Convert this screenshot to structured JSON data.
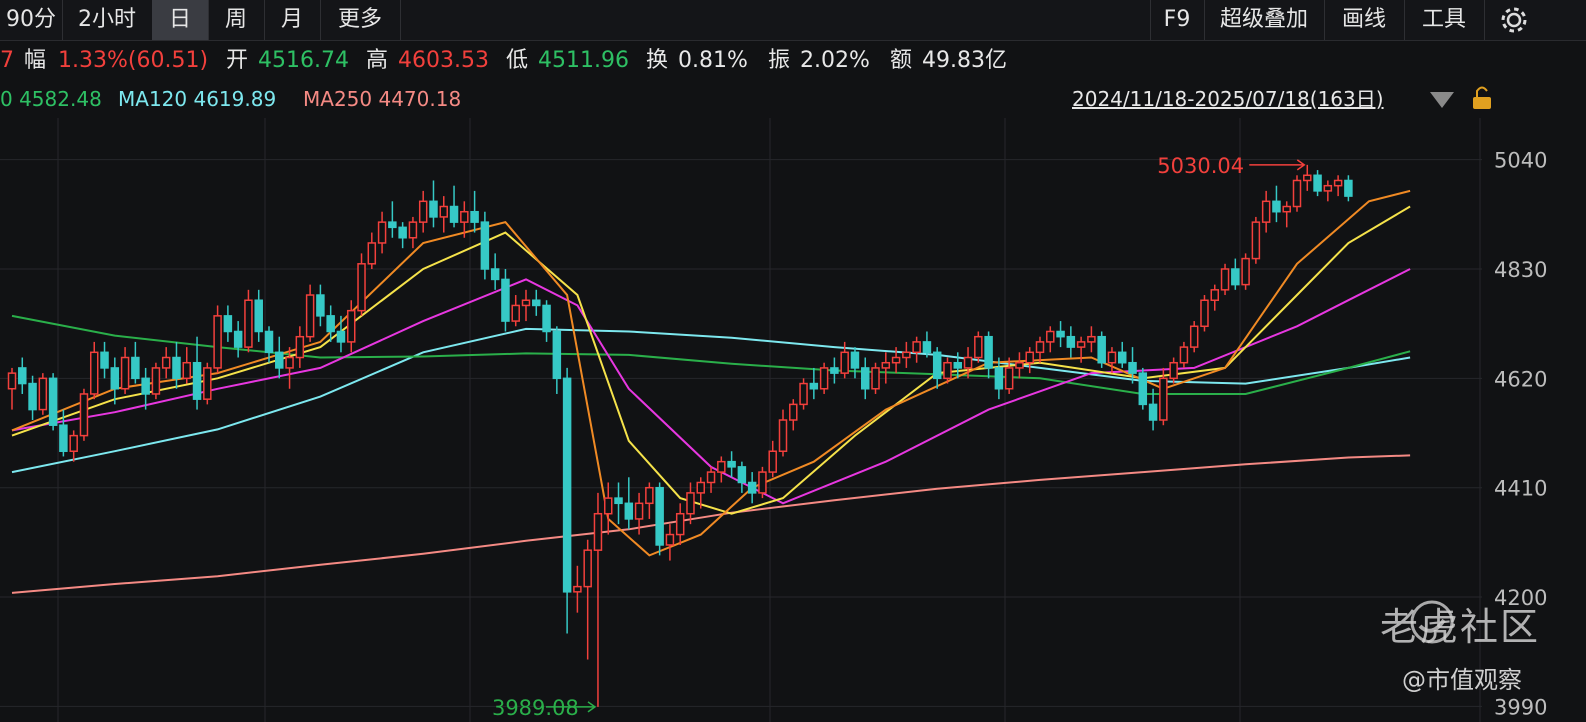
{
  "toolbar": {
    "left_tabs": [
      "90分",
      "2小时",
      "日",
      "周",
      "月",
      "更多"
    ],
    "active_tab": "日",
    "right_tabs": [
      "F9",
      "超级叠加",
      "画线",
      "工具"
    ],
    "settings_icon": "gear-icon"
  },
  "info": {
    "lead_fragment": "7",
    "change_label": "幅",
    "change_value": "1.33%(60.51)",
    "open_label": "开",
    "open_value": "4516.74",
    "high_label": "高",
    "high_value": "4603.53",
    "low_label": "低",
    "low_value": "4511.96",
    "turnover_label": "换",
    "turnover_value": "0.81%",
    "amplitude_label": "振",
    "amplitude_value": "2.02%",
    "amount_label": "额",
    "amount_value": "49.83亿"
  },
  "ma_legend": {
    "ma60_fragment": "0 4582.48",
    "ma120": "MA120 4619.89",
    "ma250": "MA250 4470.18"
  },
  "range_label": "2024/11/18-2025/07/18(163日)",
  "range_icons": [
    "triangle-down-icon",
    "lock-icon"
  ],
  "watermark": {
    "brand": "老虎社区",
    "author": "@市值观察"
  },
  "colors": {
    "up": "#f2403c",
    "down": "#36c9c6",
    "ma5": "#f0f0f0",
    "ma10": "#f5e24a",
    "ma20": "#e737e0",
    "ma30": "#f08a24",
    "ma60": "#2aaf4a",
    "ma120": "#7de8ef",
    "ma250": "#f58a84"
  },
  "chart_data": {
    "type": "candlestick",
    "ylim": [
      3960,
      5120
    ],
    "y_ticks": [
      5040,
      4830,
      4620,
      4410,
      4200,
      3990
    ],
    "max_label": "5030.04",
    "min_label": "3989.08",
    "candles": [
      [
        4600,
        4640,
        4560,
        4630
      ],
      [
        4640,
        4660,
        4590,
        4610
      ],
      [
        4610,
        4625,
        4540,
        4560
      ],
      [
        4560,
        4630,
        4550,
        4620
      ],
      [
        4620,
        4630,
        4520,
        4530
      ],
      [
        4530,
        4560,
        4470,
        4480
      ],
      [
        4480,
        4520,
        4460,
        4510
      ],
      [
        4510,
        4600,
        4500,
        4590
      ],
      [
        4590,
        4690,
        4580,
        4670
      ],
      [
        4670,
        4690,
        4620,
        4640
      ],
      [
        4640,
        4660,
        4570,
        4600
      ],
      [
        4600,
        4680,
        4590,
        4660
      ],
      [
        4660,
        4690,
        4610,
        4620
      ],
      [
        4620,
        4640,
        4560,
        4590
      ],
      [
        4590,
        4650,
        4580,
        4640
      ],
      [
        4640,
        4680,
        4620,
        4660
      ],
      [
        4660,
        4690,
        4600,
        4620
      ],
      [
        4620,
        4680,
        4610,
        4650
      ],
      [
        4650,
        4700,
        4560,
        4580
      ],
      [
        4580,
        4650,
        4570,
        4640
      ],
      [
        4640,
        4760,
        4630,
        4740
      ],
      [
        4740,
        4760,
        4690,
        4710
      ],
      [
        4710,
        4730,
        4660,
        4680
      ],
      [
        4680,
        4790,
        4670,
        4770
      ],
      [
        4770,
        4790,
        4690,
        4710
      ],
      [
        4710,
        4720,
        4650,
        4670
      ],
      [
        4670,
        4700,
        4620,
        4640
      ],
      [
        4640,
        4680,
        4600,
        4660
      ],
      [
        4660,
        4720,
        4640,
        4700
      ],
      [
        4700,
        4800,
        4690,
        4780
      ],
      [
        4780,
        4800,
        4720,
        4740
      ],
      [
        4740,
        4760,
        4690,
        4710
      ],
      [
        4710,
        4740,
        4670,
        4690
      ],
      [
        4690,
        4770,
        4670,
        4750
      ],
      [
        4750,
        4860,
        4740,
        4840
      ],
      [
        4840,
        4900,
        4830,
        4880
      ],
      [
        4880,
        4940,
        4860,
        4920
      ],
      [
        4920,
        4960,
        4890,
        4910
      ],
      [
        4910,
        4920,
        4870,
        4890
      ],
      [
        4890,
        4930,
        4870,
        4920
      ],
      [
        4920,
        4980,
        4900,
        4960
      ],
      [
        4960,
        5000,
        4910,
        4930
      ],
      [
        4930,
        4970,
        4900,
        4950
      ],
      [
        4950,
        4990,
        4910,
        4920
      ],
      [
        4920,
        4960,
        4890,
        4940
      ],
      [
        4940,
        4980,
        4900,
        4920
      ],
      [
        4920,
        4940,
        4810,
        4830
      ],
      [
        4830,
        4860,
        4790,
        4810
      ],
      [
        4810,
        4830,
        4710,
        4730
      ],
      [
        4730,
        4780,
        4720,
        4760
      ],
      [
        4760,
        4790,
        4730,
        4770
      ],
      [
        4770,
        4790,
        4740,
        4760
      ],
      [
        4760,
        4770,
        4690,
        4710
      ],
      [
        4710,
        4720,
        4590,
        4620
      ],
      [
        4620,
        4640,
        4130,
        4210
      ],
      [
        4210,
        4260,
        4170,
        4220
      ],
      [
        4220,
        4310,
        4080,
        4290
      ],
      [
        4290,
        4400,
        3989,
        4360
      ],
      [
        4360,
        4420,
        4320,
        4390
      ],
      [
        4390,
        4420,
        4340,
        4380
      ],
      [
        4380,
        4430,
        4330,
        4350
      ],
      [
        4350,
        4400,
        4320,
        4380
      ],
      [
        4380,
        4420,
        4350,
        4410
      ],
      [
        4410,
        4420,
        4280,
        4300
      ],
      [
        4300,
        4340,
        4270,
        4320
      ],
      [
        4320,
        4380,
        4300,
        4360
      ],
      [
        4360,
        4420,
        4340,
        4400
      ],
      [
        4400,
        4430,
        4370,
        4420
      ],
      [
        4420,
        4450,
        4400,
        4440
      ],
      [
        4440,
        4470,
        4420,
        4460
      ],
      [
        4460,
        4480,
        4430,
        4450
      ],
      [
        4450,
        4460,
        4400,
        4420
      ],
      [
        4420,
        4440,
        4380,
        4400
      ],
      [
        4400,
        4450,
        4390,
        4440
      ],
      [
        4440,
        4500,
        4430,
        4480
      ],
      [
        4480,
        4560,
        4470,
        4540
      ],
      [
        4540,
        4580,
        4520,
        4570
      ],
      [
        4570,
        4620,
        4560,
        4610
      ],
      [
        4610,
        4640,
        4580,
        4600
      ],
      [
        4600,
        4650,
        4590,
        4640
      ],
      [
        4640,
        4660,
        4610,
        4630
      ],
      [
        4630,
        4690,
        4620,
        4670
      ],
      [
        4670,
        4680,
        4620,
        4640
      ],
      [
        4640,
        4660,
        4580,
        4600
      ],
      [
        4600,
        4650,
        4590,
        4640
      ],
      [
        4640,
        4670,
        4610,
        4650
      ],
      [
        4650,
        4680,
        4630,
        4660
      ],
      [
        4660,
        4690,
        4640,
        4670
      ],
      [
        4670,
        4700,
        4650,
        4690
      ],
      [
        4690,
        4710,
        4660,
        4670
      ],
      [
        4670,
        4680,
        4600,
        4620
      ],
      [
        4620,
        4660,
        4610,
        4650
      ],
      [
        4650,
        4670,
        4620,
        4640
      ],
      [
        4640,
        4680,
        4620,
        4660
      ],
      [
        4660,
        4710,
        4650,
        4700
      ],
      [
        4700,
        4710,
        4620,
        4640
      ],
      [
        4640,
        4660,
        4580,
        4600
      ],
      [
        4600,
        4660,
        4590,
        4640
      ],
      [
        4640,
        4670,
        4620,
        4650
      ],
      [
        4650,
        4680,
        4630,
        4670
      ],
      [
        4670,
        4700,
        4650,
        4690
      ],
      [
        4690,
        4720,
        4670,
        4710
      ],
      [
        4710,
        4730,
        4680,
        4700
      ],
      [
        4700,
        4720,
        4660,
        4680
      ],
      [
        4680,
        4700,
        4650,
        4690
      ],
      [
        4690,
        4720,
        4670,
        4700
      ],
      [
        4700,
        4710,
        4640,
        4650
      ],
      [
        4650,
        4680,
        4630,
        4670
      ],
      [
        4670,
        4690,
        4640,
        4650
      ],
      [
        4650,
        4680,
        4610,
        4630
      ],
      [
        4630,
        4640,
        4560,
        4570
      ],
      [
        4570,
        4600,
        4520,
        4540
      ],
      [
        4540,
        4640,
        4530,
        4620
      ],
      [
        4620,
        4660,
        4610,
        4650
      ],
      [
        4650,
        4690,
        4640,
        4680
      ],
      [
        4680,
        4730,
        4670,
        4720
      ],
      [
        4720,
        4780,
        4710,
        4770
      ],
      [
        4770,
        4800,
        4750,
        4790
      ],
      [
        4790,
        4840,
        4780,
        4830
      ],
      [
        4830,
        4850,
        4790,
        4800
      ],
      [
        4800,
        4860,
        4790,
        4850
      ],
      [
        4850,
        4930,
        4840,
        4920
      ],
      [
        4920,
        4980,
        4900,
        4960
      ],
      [
        4960,
        4990,
        4920,
        4940
      ],
      [
        4940,
        4960,
        4910,
        4950
      ],
      [
        4950,
        5010,
        4940,
        5000
      ],
      [
        5000,
        5030,
        4980,
        5010
      ],
      [
        5010,
        5020,
        4970,
        4980
      ],
      [
        4980,
        5000,
        4960,
        4990
      ],
      [
        4990,
        5010,
        4970,
        5000
      ],
      [
        5000,
        5010,
        4960,
        4970
      ]
    ],
    "ma_lines": [
      {
        "name": "MA250",
        "color": "#f58a84",
        "points": [
          [
            0,
            4208
          ],
          [
            10,
            4225
          ],
          [
            20,
            4240
          ],
          [
            30,
            4262
          ],
          [
            40,
            4283
          ],
          [
            50,
            4308
          ],
          [
            60,
            4330
          ],
          [
            70,
            4362
          ],
          [
            80,
            4386
          ],
          [
            90,
            4408
          ],
          [
            100,
            4425
          ],
          [
            110,
            4440
          ],
          [
            120,
            4455
          ],
          [
            130,
            4468
          ],
          [
            136,
            4472
          ]
        ]
      },
      {
        "name": "MA120",
        "color": "#7de8ef",
        "points": [
          [
            0,
            4440
          ],
          [
            10,
            4480
          ],
          [
            20,
            4522
          ],
          [
            30,
            4585
          ],
          [
            40,
            4670
          ],
          [
            50,
            4715
          ],
          [
            60,
            4710
          ],
          [
            70,
            4698
          ],
          [
            80,
            4680
          ],
          [
            90,
            4665
          ],
          [
            100,
            4640
          ],
          [
            110,
            4615
          ],
          [
            120,
            4610
          ],
          [
            130,
            4640
          ],
          [
            136,
            4660
          ]
        ]
      },
      {
        "name": "MA60",
        "color": "#2aaf4a",
        "points": [
          [
            0,
            4740
          ],
          [
            10,
            4702
          ],
          [
            20,
            4680
          ],
          [
            30,
            4660
          ],
          [
            40,
            4662
          ],
          [
            50,
            4668
          ],
          [
            60,
            4665
          ],
          [
            70,
            4648
          ],
          [
            80,
            4635
          ],
          [
            90,
            4628
          ],
          [
            100,
            4620
          ],
          [
            110,
            4590
          ],
          [
            120,
            4590
          ],
          [
            130,
            4640
          ],
          [
            136,
            4672
          ]
        ]
      },
      {
        "name": "MA20",
        "color": "#e737e0",
        "points": [
          [
            0,
            4520
          ],
          [
            10,
            4555
          ],
          [
            20,
            4600
          ],
          [
            30,
            4640
          ],
          [
            40,
            4730
          ],
          [
            50,
            4810
          ],
          [
            55,
            4760
          ],
          [
            60,
            4600
          ],
          [
            68,
            4450
          ],
          [
            75,
            4380
          ],
          [
            85,
            4460
          ],
          [
            95,
            4560
          ],
          [
            105,
            4630
          ],
          [
            115,
            4640
          ],
          [
            125,
            4720
          ],
          [
            130,
            4770
          ],
          [
            136,
            4830
          ]
        ]
      },
      {
        "name": "MA10",
        "color": "#f5e24a",
        "points": [
          [
            0,
            4510
          ],
          [
            10,
            4580
          ],
          [
            20,
            4620
          ],
          [
            30,
            4680
          ],
          [
            40,
            4830
          ],
          [
            48,
            4900
          ],
          [
            55,
            4780
          ],
          [
            60,
            4500
          ],
          [
            65,
            4390
          ],
          [
            70,
            4360
          ],
          [
            75,
            4390
          ],
          [
            82,
            4510
          ],
          [
            90,
            4630
          ],
          [
            100,
            4650
          ],
          [
            110,
            4620
          ],
          [
            118,
            4640
          ],
          [
            125,
            4780
          ],
          [
            130,
            4880
          ],
          [
            136,
            4950
          ]
        ]
      },
      {
        "name": "MA30",
        "color": "#f08a24",
        "points": [
          [
            0,
            4520
          ],
          [
            10,
            4600
          ],
          [
            20,
            4630
          ],
          [
            30,
            4690
          ],
          [
            40,
            4880
          ],
          [
            48,
            4920
          ],
          [
            54,
            4780
          ],
          [
            58,
            4350
          ],
          [
            62,
            4280
          ],
          [
            67,
            4320
          ],
          [
            72,
            4410
          ],
          [
            78,
            4460
          ],
          [
            85,
            4560
          ],
          [
            95,
            4650
          ],
          [
            105,
            4660
          ],
          [
            112,
            4600
          ],
          [
            118,
            4640
          ],
          [
            125,
            4840
          ],
          [
            132,
            4960
          ],
          [
            136,
            4980
          ]
        ]
      }
    ]
  }
}
